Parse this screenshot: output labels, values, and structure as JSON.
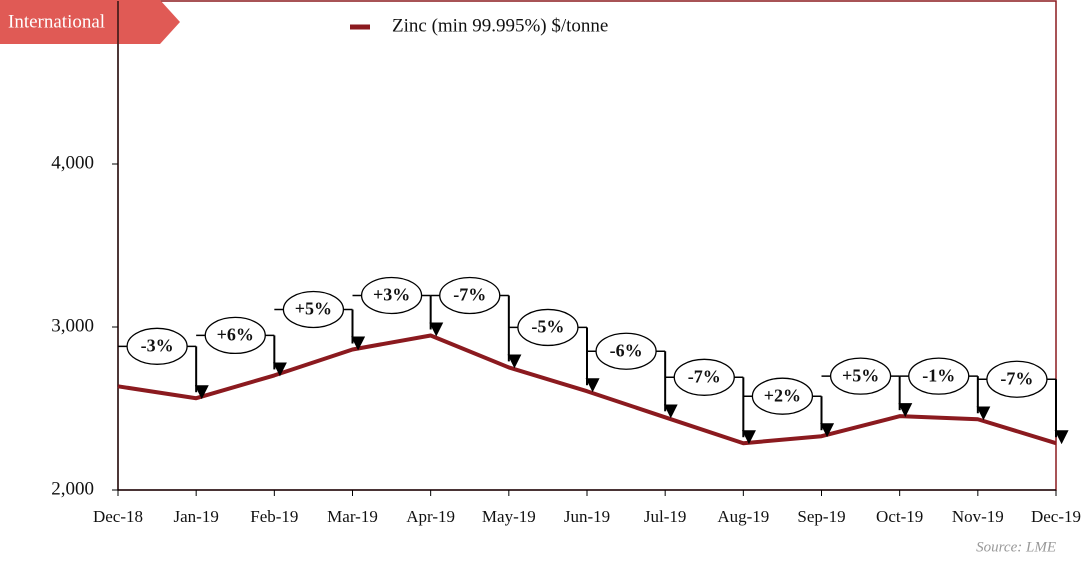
{
  "chart_data": {
    "type": "line",
    "label": "International",
    "source": "Source: LME",
    "categories": [
      "Dec-18",
      "Jan-19",
      "Feb-19",
      "Mar-19",
      "Apr-19",
      "May-19",
      "Jun-19",
      "Jul-19",
      "Aug-19",
      "Sep-19",
      "Oct-19",
      "Nov-19",
      "Dec-19"
    ],
    "series": [
      {
        "name": "Zinc (min 99.995%) $/tonne",
        "color": "#8b1a1f",
        "values": [
          2636,
          2563,
          2703,
          2862,
          2948,
          2752,
          2606,
          2446,
          2287,
          2330,
          2453,
          2434,
          2287
        ]
      }
    ],
    "annotations": [
      "-3%",
      "+6%",
      "+5%",
      "+3%",
      "-7%",
      "-5%",
      "-6%",
      "-7%",
      "+2%",
      "+5%",
      "-1%",
      "-7%"
    ],
    "ylim": [
      2000,
      5000
    ],
    "yticks": [
      {
        "value": 2000,
        "label": "2,000"
      },
      {
        "value": 3000,
        "label": "3,000"
      },
      {
        "value": 4000,
        "label": "4,000"
      }
    ]
  }
}
